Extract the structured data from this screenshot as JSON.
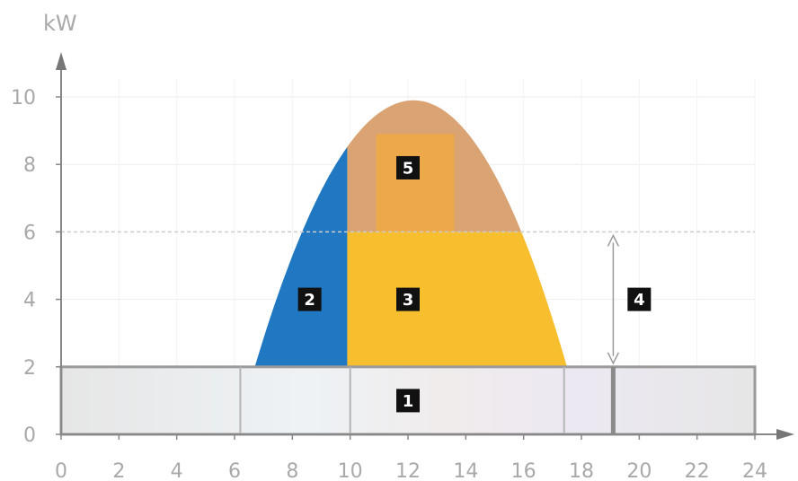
{
  "chart_data": {
    "type": "area",
    "title": "",
    "xlabel": "",
    "ylabel": "kW",
    "xlim": [
      0,
      24
    ],
    "ylim": [
      0,
      10
    ],
    "x_ticks": [
      0,
      2,
      4,
      6,
      8,
      10,
      12,
      14,
      16,
      18,
      20,
      22,
      24
    ],
    "y_ticks": [
      0,
      2,
      4,
      6,
      8,
      10
    ],
    "grid": "horizontal dashed",
    "base_load_kw": 2,
    "limit_kw": 6,
    "pv_curve": {
      "start_h": 6.7,
      "end_h": 17.5,
      "peak_h": 12.2,
      "peak_kw": 9.9
    },
    "zones": [
      {
        "badge": "1",
        "x": 12,
        "y": 1
      },
      {
        "badge": "2",
        "x": 8.6,
        "y": 4
      },
      {
        "badge": "3",
        "x": 12,
        "y": 4
      },
      {
        "badge": "4",
        "x": 20,
        "y": 4
      },
      {
        "badge": "5",
        "x": 12,
        "y": 7.9
      }
    ],
    "colors": {
      "blue": "#1f78c1",
      "yellow": "#f7bf2e",
      "orange": "#f2a93b",
      "tan": "#d9a374",
      "base": "#e8e8e8",
      "axis": "#888888",
      "grid": "#cccccc",
      "badge": "#111111"
    }
  }
}
